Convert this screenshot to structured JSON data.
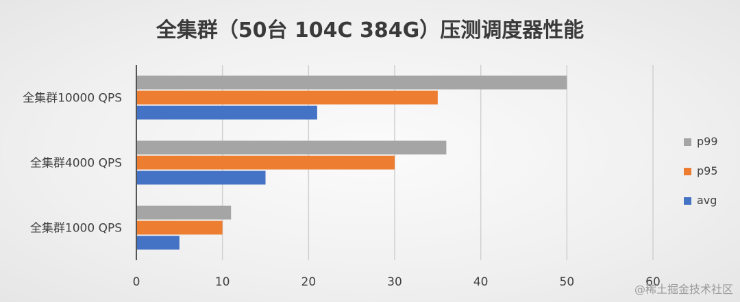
{
  "chart_data": {
    "type": "bar",
    "orientation": "horizontal",
    "title": "全集群（50台 104C 384G）压测调度器性能",
    "categories": [
      "全集群10000 QPS",
      "全集群4000 QPS",
      "全集群1000 QPS"
    ],
    "series": [
      {
        "name": "p99",
        "color": "#a5a5a5",
        "values": [
          50,
          36,
          11
        ]
      },
      {
        "name": "p95",
        "color": "#ed7d31",
        "values": [
          35,
          30,
          10
        ]
      },
      {
        "name": "avg",
        "color": "#4472c4",
        "values": [
          21,
          15,
          5
        ]
      }
    ],
    "xlim": [
      0,
      60
    ],
    "xticks": [
      0,
      10,
      20,
      30,
      40,
      50,
      60
    ],
    "grid": true,
    "legend_position": "right"
  },
  "watermark": "@稀土掘金技术社区"
}
